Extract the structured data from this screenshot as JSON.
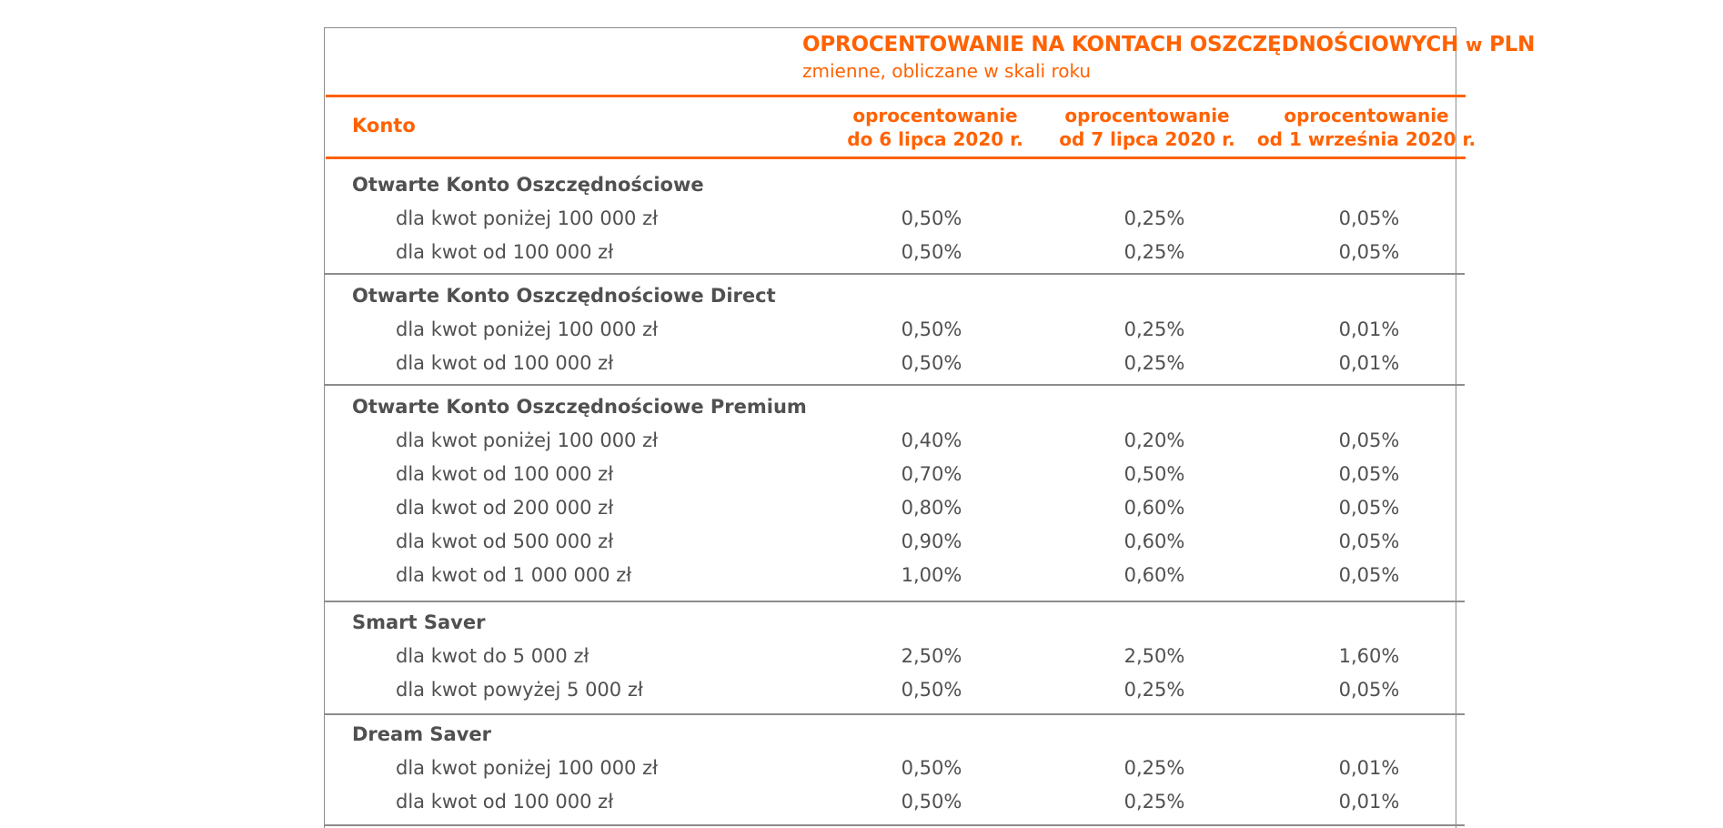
{
  "header": {
    "title_main": "OPROCENTOWANIE NA KONTACH OSZCZĘDNOŚCIOWYCH",
    "title_w": "w",
    "title_currency": "PLN",
    "subtitle": "zmienne, obliczane w skali roku"
  },
  "columns": {
    "account": "Konto",
    "col1": [
      "oprocentowanie",
      "do 6 lipca 2020 r."
    ],
    "col2": [
      "oprocentowanie",
      "od 7 lipca 2020 r."
    ],
    "col3": [
      "oprocentowanie",
      "od 1 września 2020 r."
    ]
  },
  "groups": [
    {
      "name": "Otwarte Konto Oszczędnościowe",
      "rows": [
        {
          "label": "dla kwot poniżej 100 000 zł",
          "v1": "0,50%",
          "v2": "0,25%",
          "v3": "0,05%"
        },
        {
          "label": "dla kwot od 100 000 zł",
          "v1": "0,50%",
          "v2": "0,25%",
          "v3": "0,05%"
        }
      ]
    },
    {
      "name": "Otwarte Konto Oszczędnościowe Direct",
      "rows": [
        {
          "label": "dla kwot poniżej 100 000 zł",
          "v1": "0,50%",
          "v2": "0,25%",
          "v3": "0,01%"
        },
        {
          "label": "dla kwot od 100 000 zł",
          "v1": "0,50%",
          "v2": "0,25%",
          "v3": "0,01%"
        }
      ]
    },
    {
      "name": "Otwarte Konto Oszczędnościowe Premium",
      "rows": [
        {
          "label": "dla kwot poniżej 100 000 zł",
          "v1": "0,40%",
          "v2": "0,20%",
          "v3": "0,05%"
        },
        {
          "label": "dla kwot od 100 000 zł",
          "v1": "0,70%",
          "v2": "0,50%",
          "v3": "0,05%"
        },
        {
          "label": "dla kwot od 200 000 zł",
          "v1": "0,80%",
          "v2": "0,60%",
          "v3": "0,05%"
        },
        {
          "label": "dla kwot od 500 000 zł",
          "v1": "0,90%",
          "v2": "0,60%",
          "v3": "0,05%"
        },
        {
          "label": "dla kwot od 1 000 000 zł",
          "v1": "1,00%",
          "v2": "0,60%",
          "v3": "0,05%"
        }
      ]
    },
    {
      "name": "Smart Saver",
      "rows": [
        {
          "label": "dla kwot do 5 000 zł",
          "v1": "2,50%",
          "v2": "2,50%",
          "v3": "1,60%"
        },
        {
          "label": "dla kwot powyżej 5 000 zł",
          "v1": "0,50%",
          "v2": "0,25%",
          "v3": "0,05%"
        }
      ]
    },
    {
      "name": "Dream Saver",
      "rows": [
        {
          "label": "dla kwot poniżej 100 000 zł",
          "v1": "0,50%",
          "v2": "0,25%",
          "v3": "0,01%"
        },
        {
          "label": "dla kwot od 100 000 zł",
          "v1": "0,50%",
          "v2": "0,25%",
          "v3": "0,01%"
        }
      ]
    }
  ]
}
